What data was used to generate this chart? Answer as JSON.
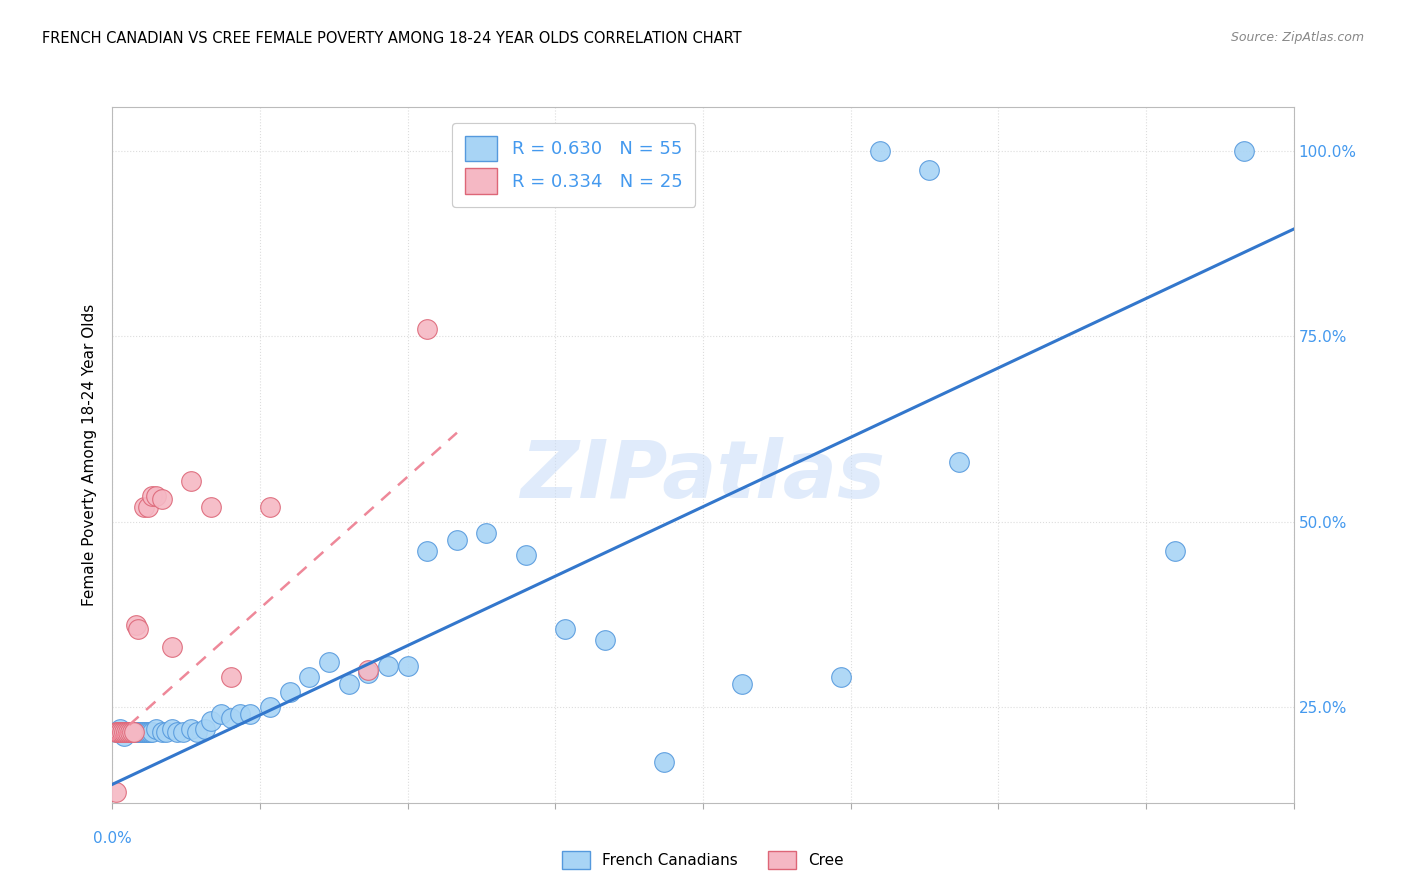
{
  "title": "FRENCH CANADIAN VS CREE FEMALE POVERTY AMONG 18-24 YEAR OLDS CORRELATION CHART",
  "source": "Source: ZipAtlas.com",
  "ylabel": "Female Poverty Among 18-24 Year Olds",
  "xlim": [
    0.0,
    0.6
  ],
  "ylim": [
    0.12,
    1.06
  ],
  "ytick_vals": [
    0.25,
    0.5,
    0.75,
    1.0
  ],
  "ytick_labels": [
    "25.0%",
    "50.0%",
    "75.0%",
    "100.0%"
  ],
  "watermark": "ZIPatlas",
  "fc_color": "#a8d4f5",
  "fc_edge": "#5599dd",
  "cree_color": "#f5b8c4",
  "cree_edge": "#dd6677",
  "blue_line": "#3377cc",
  "pink_line": "#ee8899",
  "grid_color": "#dddddd",
  "bg_color": "#ffffff",
  "label_color": "#4499ee",
  "fc_x": [
    0.002,
    0.003,
    0.004,
    0.005,
    0.006,
    0.007,
    0.008,
    0.009,
    0.01,
    0.011,
    0.012,
    0.013,
    0.014,
    0.015,
    0.016,
    0.017,
    0.018,
    0.019,
    0.02,
    0.022,
    0.025,
    0.027,
    0.03,
    0.033,
    0.036,
    0.04,
    0.043,
    0.047,
    0.05,
    0.055,
    0.06,
    0.065,
    0.07,
    0.08,
    0.09,
    0.1,
    0.11,
    0.12,
    0.13,
    0.14,
    0.15,
    0.16,
    0.175,
    0.19,
    0.21,
    0.23,
    0.25,
    0.28,
    0.32,
    0.37,
    0.39,
    0.415,
    0.43,
    0.54,
    0.575
  ],
  "fc_y": [
    0.215,
    0.215,
    0.22,
    0.215,
    0.21,
    0.215,
    0.215,
    0.215,
    0.215,
    0.215,
    0.215,
    0.215,
    0.215,
    0.215,
    0.215,
    0.215,
    0.215,
    0.215,
    0.215,
    0.22,
    0.215,
    0.215,
    0.22,
    0.215,
    0.215,
    0.22,
    0.215,
    0.22,
    0.23,
    0.24,
    0.235,
    0.24,
    0.24,
    0.25,
    0.27,
    0.29,
    0.31,
    0.28,
    0.295,
    0.305,
    0.305,
    0.46,
    0.475,
    0.485,
    0.455,
    0.355,
    0.34,
    0.175,
    0.28,
    0.29,
    1.0,
    0.975,
    0.58,
    0.46,
    1.0
  ],
  "cree_x": [
    0.002,
    0.003,
    0.004,
    0.005,
    0.006,
    0.007,
    0.008,
    0.009,
    0.01,
    0.011,
    0.012,
    0.013,
    0.016,
    0.018,
    0.02,
    0.022,
    0.025,
    0.03,
    0.04,
    0.05,
    0.06,
    0.08,
    0.13,
    0.16,
    0.002
  ],
  "cree_y": [
    0.215,
    0.215,
    0.215,
    0.215,
    0.215,
    0.215,
    0.215,
    0.215,
    0.215,
    0.215,
    0.36,
    0.355,
    0.52,
    0.52,
    0.535,
    0.535,
    0.53,
    0.33,
    0.555,
    0.52,
    0.29,
    0.52,
    0.3,
    0.76,
    0.135
  ],
  "blue_line_x": [
    0.0,
    0.6
  ],
  "blue_line_y": [
    0.145,
    0.895
  ],
  "pink_line_x": [
    0.0,
    0.175
  ],
  "pink_line_y": [
    0.205,
    0.62
  ]
}
